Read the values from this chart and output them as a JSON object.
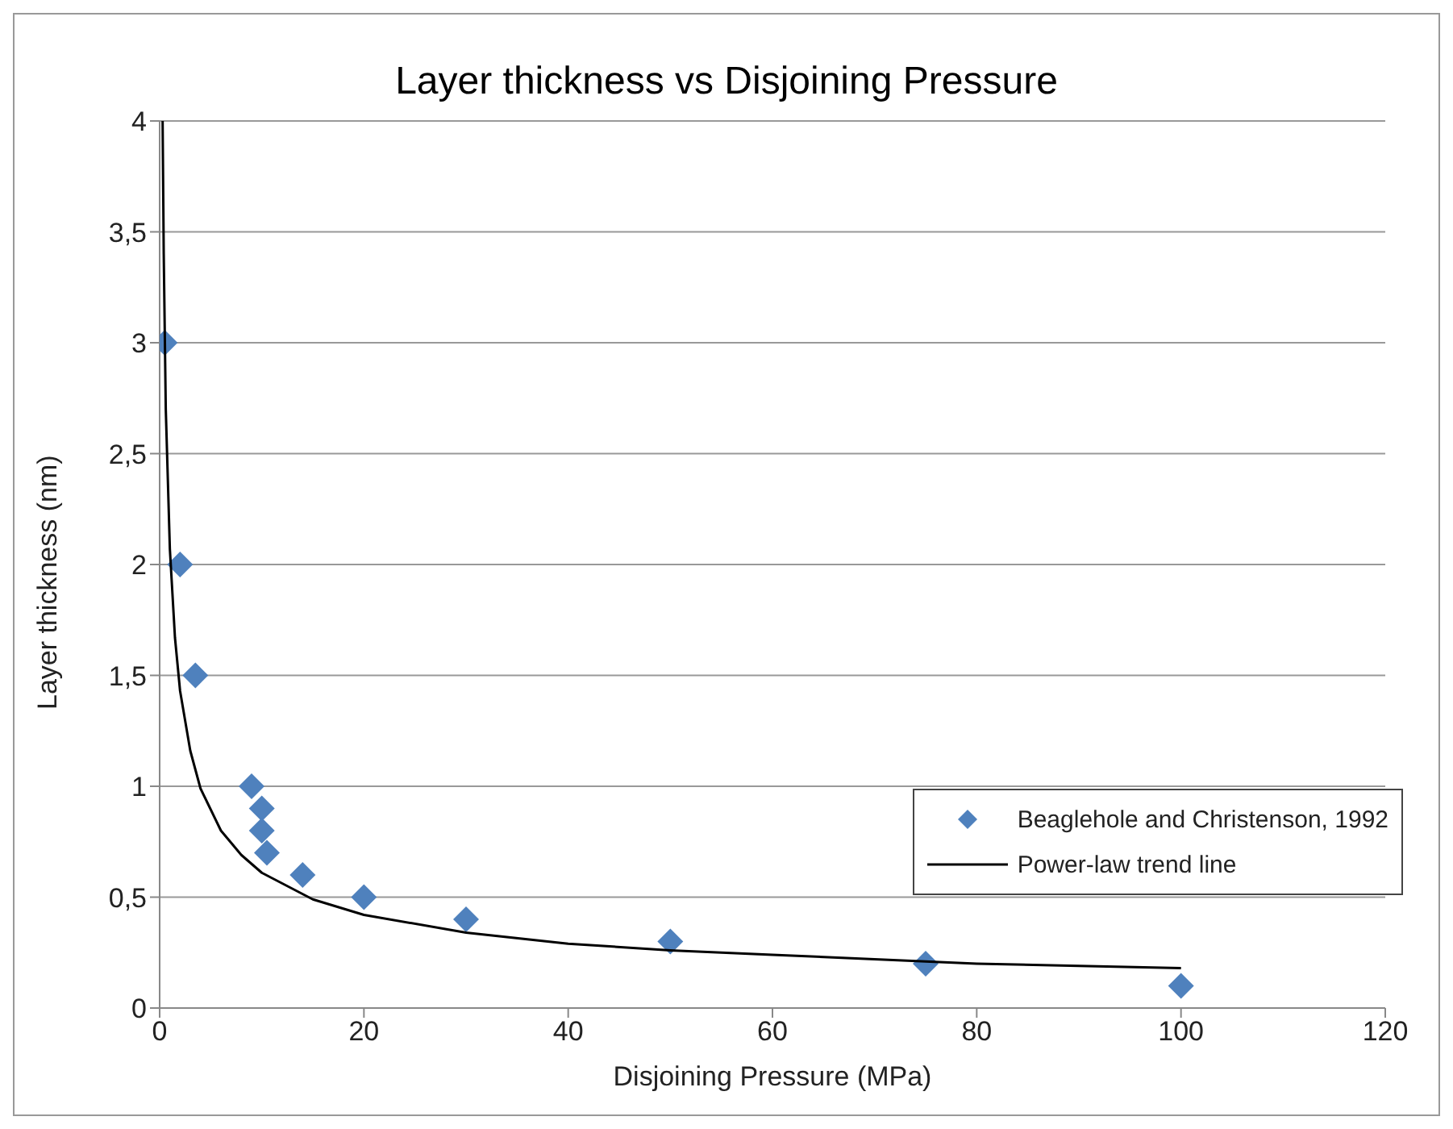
{
  "chart_data": {
    "type": "scatter",
    "title": "Layer thickness vs Disjoining Pressure",
    "xlabel": "Disjoining Pressure (MPa)",
    "ylabel": "Layer thickness (nm)",
    "xlim": [
      0,
      120
    ],
    "xticks": [
      0,
      20,
      40,
      60,
      80,
      100,
      120
    ],
    "ylim": [
      0,
      4
    ],
    "yticks": [
      0,
      {
        "value": 0.5,
        "label": "0,5"
      },
      1,
      {
        "value": 1.5,
        "label": "1,5"
      },
      2,
      {
        "value": 2.5,
        "label": "2,5"
      },
      3,
      {
        "value": 3.5,
        "label": "3,5"
      },
      4
    ],
    "grid": "y",
    "legend": "bottom right",
    "series": [
      {
        "name": "Beaglehole and Christenson, 1992",
        "type": "scatter",
        "marker": "diamond",
        "color": "#4f81bd",
        "x": [
          0.5,
          2,
          3.5,
          9,
          10,
          10,
          10.5,
          14,
          20,
          30,
          50,
          75,
          100
        ],
        "values": [
          3,
          2,
          1.5,
          1,
          0.9,
          0.8,
          0.7,
          0.6,
          0.5,
          0.4,
          0.3,
          0.2,
          0.1
        ]
      },
      {
        "name": "Power-law trend line",
        "type": "line",
        "marker": "none",
        "line_style": "solid",
        "color": "#000000",
        "x": [
          0.29,
          0.4,
          0.6,
          1,
          1.5,
          2,
          3,
          4,
          6,
          8,
          10,
          15,
          20,
          30,
          40,
          50,
          60,
          70,
          80,
          90,
          100
        ],
        "values": [
          4,
          3.4,
          2.7,
          2.07,
          1.67,
          1.43,
          1.16,
          0.99,
          0.8,
          0.69,
          0.61,
          0.49,
          0.42,
          0.34,
          0.29,
          0.26,
          0.24,
          0.22,
          0.2,
          0.19,
          0.18
        ]
      }
    ]
  }
}
